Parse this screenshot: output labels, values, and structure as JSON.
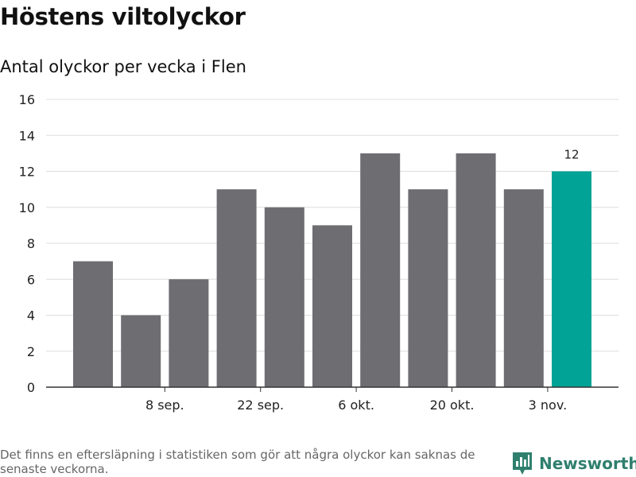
{
  "header": {
    "title": "Höstens viltolyckor",
    "subtitle": "Antal olyckor per vecka i Flen"
  },
  "footer": {
    "note": "Det finns en eftersläpning i statistiken som gör att några olyckor kan saknas de senaste veckorna.",
    "brand": "Newsworthy",
    "brand_icon": "newsworthy-logo-icon"
  },
  "colors": {
    "bar": "#6e6d72",
    "highlight": "#00a396",
    "grid": "#dddddd",
    "axis": "#333333",
    "brand": "#2f7f6e"
  },
  "chart_data": {
    "type": "bar",
    "title": "Höstens viltolyckor",
    "subtitle": "Antal olyckor per vecka i Flen",
    "xlabel": "",
    "ylabel": "",
    "ylim": [
      0,
      16
    ],
    "yticks": [
      0,
      2,
      4,
      6,
      8,
      10,
      12,
      14,
      16
    ],
    "values": [
      7,
      4,
      6,
      11,
      10,
      9,
      13,
      11,
      13,
      11,
      12
    ],
    "xtick_labels": [
      {
        "bar_index": 1,
        "label": "8 sep."
      },
      {
        "bar_index": 3,
        "label": "22 sep."
      },
      {
        "bar_index": 5,
        "label": "6 okt."
      },
      {
        "bar_index": 7,
        "label": "20 okt."
      },
      {
        "bar_index": 9,
        "label": "3 nov."
      }
    ],
    "highlight_index": 10,
    "data_labels": [
      {
        "bar_index": 10,
        "label": "12"
      }
    ],
    "grid": true,
    "legend": "none"
  }
}
